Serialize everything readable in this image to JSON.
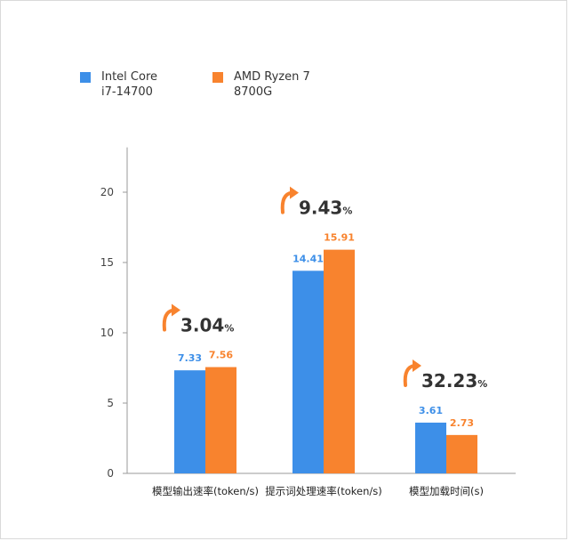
{
  "colors": {
    "intel": "#3D8FE8",
    "amd": "#F8832E",
    "axis": "#9a9a9a",
    "text": "#333333"
  },
  "chart_data": {
    "type": "bar",
    "categories": [
      "模型输出速率(token/s)",
      "提示词处理速率(token/s)",
      "模型加载时间(s)"
    ],
    "series": [
      {
        "name": "Intel Core\ni7-14700",
        "values": [
          7.33,
          14.41,
          3.61
        ],
        "labels": [
          "7.33",
          "14.41",
          "3.61"
        ]
      },
      {
        "name": "AMD Ryzen 7\n8700G",
        "values": [
          7.56,
          15.91,
          2.73
        ],
        "labels": [
          "7.56",
          "15.91",
          "2.73"
        ]
      }
    ],
    "ylim": [
      0,
      23
    ],
    "yticks": [
      0,
      5,
      10,
      15,
      20
    ],
    "ytick_labels": [
      "0",
      "5",
      "10",
      "15",
      "20"
    ],
    "annotations": [
      {
        "category_index": 0,
        "value": "3.04",
        "unit": "%",
        "icon": "up-arrow-icon"
      },
      {
        "category_index": 1,
        "value": "9.43",
        "unit": "%",
        "icon": "up-arrow-icon"
      },
      {
        "category_index": 2,
        "value": "32.23",
        "unit": "%",
        "icon": "up-arrow-icon"
      }
    ],
    "legend_position": "top-left",
    "grid": false
  }
}
